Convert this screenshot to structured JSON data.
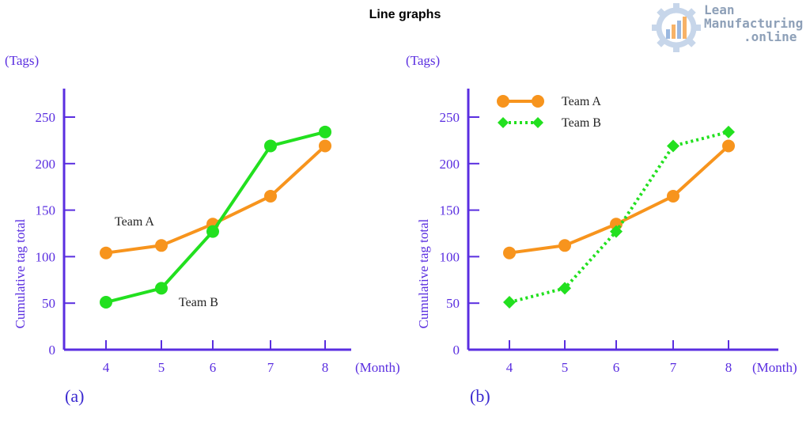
{
  "page": {
    "title": "Line graphs"
  },
  "logo": {
    "lines": [
      "Lean",
      "Manufacturing",
      ".online"
    ],
    "icon": "gear-chart-logo-icon"
  },
  "colors": {
    "axis": "#5a2ee0",
    "team_a": "#f7941d",
    "team_b": "#22e01f",
    "annotation": "#222222"
  },
  "chart_data": [
    {
      "type": "line",
      "panel_label": "(a)",
      "units_y": "(Tags)",
      "units_x": "(Month)",
      "ylabel": "Cumulative tag total",
      "xlabel": "",
      "x": [
        4,
        5,
        6,
        7,
        8
      ],
      "ylim": [
        0,
        270
      ],
      "yticks": [
        0,
        50,
        100,
        150,
        200,
        250
      ],
      "grid": false,
      "legend": "none",
      "series": [
        {
          "name": "Team A",
          "marker": "circle",
          "style": "solid",
          "values": [
            104,
            112,
            135,
            165,
            219
          ]
        },
        {
          "name": "Team B",
          "marker": "circle",
          "style": "solid",
          "values": [
            51,
            66,
            127,
            219,
            234
          ]
        }
      ],
      "annotations": [
        {
          "text": "Team A",
          "series": "Team A"
        },
        {
          "text": "Team B",
          "series": "Team B"
        }
      ]
    },
    {
      "type": "line",
      "panel_label": "(b)",
      "units_y": "(Tags)",
      "units_x": "(Month)",
      "ylabel": "Cumulative tag total",
      "xlabel": "",
      "x": [
        4,
        5,
        6,
        7,
        8
      ],
      "ylim": [
        0,
        270
      ],
      "yticks": [
        0,
        50,
        100,
        150,
        200,
        250
      ],
      "grid": false,
      "legend": "top-left",
      "series": [
        {
          "name": "Team A",
          "marker": "circle",
          "style": "solid",
          "values": [
            104,
            112,
            135,
            165,
            219
          ]
        },
        {
          "name": "Team B",
          "marker": "diamond",
          "style": "dotted",
          "values": [
            51,
            66,
            127,
            219,
            234
          ]
        }
      ]
    }
  ]
}
